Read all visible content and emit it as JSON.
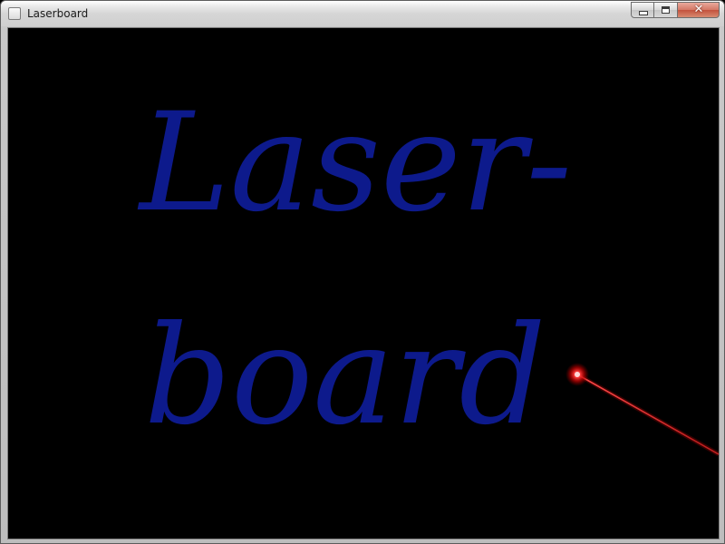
{
  "window": {
    "title": "Laserboard",
    "icon": "app-window-icon"
  },
  "caption_buttons": {
    "minimize_icon": "minimize-icon",
    "maximize_icon": "maximize-icon",
    "close_icon": "close-icon"
  },
  "board": {
    "background_color": "#000000",
    "ink_color": "#0d1a8c",
    "laser_color": "#ff2020",
    "lines": [
      "Laser-",
      "board"
    ]
  }
}
